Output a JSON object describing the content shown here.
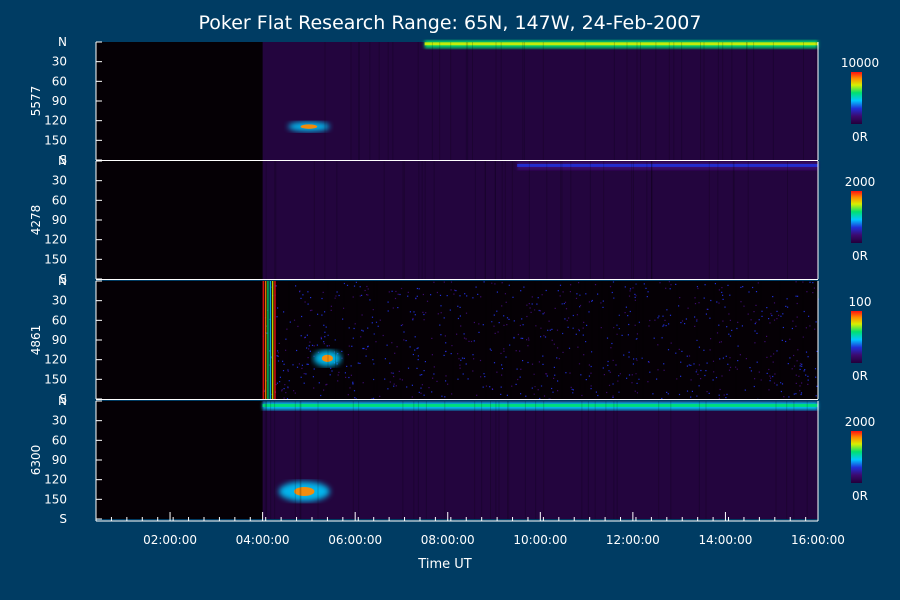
{
  "background": "#003c63",
  "chart_data": {
    "type": "heatmap",
    "title": "Poker Flat Research Range: 65N, 147W, 24-Feb-2007",
    "xlabel": "Time UT",
    "x_ticks": [
      "02:00:00",
      "04:00:00",
      "06:00:00",
      "08:00:00",
      "10:00:00",
      "12:00:00",
      "14:00:00",
      "16:00:00"
    ],
    "x_tick_hours": [
      2,
      4,
      6,
      8,
      10,
      12,
      14,
      16
    ],
    "xlim_hours": [
      0.4,
      16.0
    ],
    "data_start_hour": 4.0,
    "y_ticks": [
      "N",
      "30",
      "60",
      "90",
      "120",
      "150",
      "S"
    ],
    "y_tick_values": [
      0,
      30,
      60,
      90,
      120,
      150,
      180
    ],
    "ylim": [
      0,
      180
    ],
    "colormap": [
      "#22003a",
      "#3c0a6e",
      "#2030d8",
      "#00c8ff",
      "#00e070",
      "#d8f000",
      "#ff8a00",
      "#ff1010"
    ],
    "panels": [
      {
        "name": "5577",
        "scale_max": "10000",
        "scale_min": "0R",
        "features": [
          {
            "kind": "band",
            "t0": 4.0,
            "t1": 16.0,
            "level": 0.06
          },
          {
            "kind": "arc",
            "t0": 7.5,
            "t1": 16.0,
            "y": 2,
            "level": 0.5
          },
          {
            "kind": "blob",
            "t": 5.0,
            "y": 129,
            "dt": 0.45,
            "dy": 5,
            "level": 0.85
          }
        ]
      },
      {
        "name": "4278",
        "scale_max": "2000",
        "scale_min": "0R",
        "features": [
          {
            "kind": "band",
            "t0": 4.0,
            "t1": 16.0,
            "level": 0.03
          },
          {
            "kind": "arc",
            "t0": 9.5,
            "t1": 16.0,
            "y": 6,
            "level": 0.12
          }
        ]
      },
      {
        "name": "4861",
        "scale_max": "100",
        "scale_min": "0R",
        "features": [
          {
            "kind": "noise",
            "t0": 4.0,
            "t1": 16.0,
            "level": 0.25
          },
          {
            "kind": "spike",
            "t0": 4.0,
            "t1": 4.3,
            "level": 0.95
          },
          {
            "kind": "blob",
            "t": 5.4,
            "y": 118,
            "dt": 0.3,
            "dy": 8,
            "level": 0.8
          }
        ]
      },
      {
        "name": "6300",
        "scale_max": "2000",
        "scale_min": "0R",
        "features": [
          {
            "kind": "band",
            "t0": 4.0,
            "t1": 16.0,
            "level": 0.08
          },
          {
            "kind": "arc",
            "t0": 4.0,
            "t1": 16.0,
            "y": 6,
            "level": 0.45
          },
          {
            "kind": "blob",
            "t": 4.9,
            "y": 138,
            "dt": 0.55,
            "dy": 10,
            "level": 0.9
          }
        ]
      }
    ]
  }
}
